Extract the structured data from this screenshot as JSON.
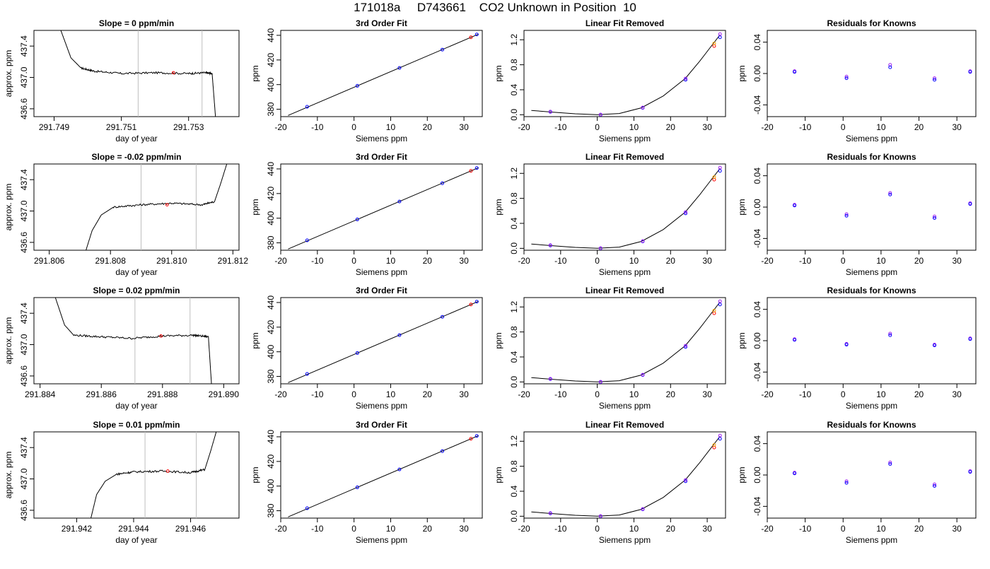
{
  "page": {
    "title": "171018a     D743661    CO2 Unknown in Position  10"
  },
  "colors": {
    "trace": "#000000",
    "marker_red": "#ff0000",
    "marker_blue": "#0000ff",
    "marker_purple": "#a020f0",
    "marker_orange": "#ffa500",
    "window_line": "#bebebe"
  },
  "fit_panel": {
    "title": "3rd Order Fit",
    "xlabel": "Siemens ppm",
    "ylabel": "ppm",
    "xlim": [
      -20,
      35
    ],
    "ylim": [
      374,
      444
    ],
    "xticks": [
      -20,
      -10,
      0,
      10,
      20,
      30
    ],
    "yticks": [
      380,
      400,
      420,
      440
    ],
    "line": [
      [
        -18,
        375
      ],
      [
        34,
        441
      ]
    ],
    "points": [
      {
        "x": -12.8,
        "y": 382.0,
        "color": "blue"
      },
      {
        "x": 0.9,
        "y": 399.0,
        "color": "blue"
      },
      {
        "x": 12.4,
        "y": 413.5,
        "color": "blue"
      },
      {
        "x": 24.1,
        "y": 428.4,
        "color": "blue"
      },
      {
        "x": 31.9,
        "y": 438.4,
        "color": "red"
      },
      {
        "x": 33.5,
        "y": 440.7,
        "color": "blue"
      }
    ]
  },
  "linear_panel": {
    "title": "Linear Fit Removed",
    "xlabel": "Siemens ppm",
    "ylabel": "ppm",
    "xlim": [
      -20,
      35
    ],
    "ylim": [
      -0.03,
      1.35
    ],
    "xticks": [
      -20,
      -10,
      0,
      10,
      20,
      30
    ],
    "yticks": [
      0.0,
      0.4,
      0.8,
      1.2
    ],
    "ytick_labels": [
      "0.0",
      "0.4",
      "0.8",
      "1.2"
    ],
    "curve": [
      [
        -18,
        0.07
      ],
      [
        -12,
        0.04
      ],
      [
        -6,
        0.015
      ],
      [
        0,
        0.0
      ],
      [
        6,
        0.02
      ],
      [
        12,
        0.11
      ],
      [
        18,
        0.3
      ],
      [
        24,
        0.58
      ],
      [
        28,
        0.86
      ],
      [
        31,
        1.09
      ],
      [
        33.5,
        1.28
      ]
    ],
    "points": [
      {
        "x": -12.8,
        "y": 0.045,
        "color": "blue"
      },
      {
        "x": -12.8,
        "y": 0.05,
        "color": "purple"
      },
      {
        "x": 0.9,
        "y": 0.0,
        "color": "blue"
      },
      {
        "x": 0.9,
        "y": 0.003,
        "color": "purple"
      },
      {
        "x": 12.4,
        "y": 0.11,
        "color": "blue"
      },
      {
        "x": 12.4,
        "y": 0.115,
        "color": "purple"
      },
      {
        "x": 24.1,
        "y": 0.56,
        "color": "blue"
      },
      {
        "x": 24.1,
        "y": 0.58,
        "color": "purple"
      },
      {
        "x": 31.9,
        "y": 1.1,
        "color": "red"
      },
      {
        "x": 31.9,
        "y": 1.14,
        "color": "orange"
      },
      {
        "x": 33.5,
        "y": 1.24,
        "color": "blue"
      },
      {
        "x": 33.5,
        "y": 1.29,
        "color": "purple"
      }
    ]
  },
  "residual_panel": {
    "title": "Residuals for Knowns",
    "xlabel": "Siemens ppm",
    "ylabel": "ppm",
    "xlim": [
      -20,
      35
    ],
    "ylim": [
      -0.055,
      0.055
    ],
    "xticks": [
      -20,
      -10,
      0,
      10,
      20,
      30
    ],
    "yticks": [
      -0.04,
      0.0,
      0.04
    ],
    "ytick_labels": [
      "-0.04",
      "0.00",
      "0.04"
    ]
  },
  "rows": [
    {
      "slope_title": "Slope =  0  ppm/min",
      "xlabel": "day of year",
      "ylabel": "approx. ppm",
      "xlim": [
        291.7484,
        291.7545
      ],
      "xticks": [
        291.749,
        291.751,
        291.753
      ],
      "xtick_labels": [
        "291.749",
        "291.751",
        "291.753"
      ],
      "ylim": [
        436.5,
        437.6
      ],
      "yticks": [
        436.6,
        437.0,
        437.4
      ],
      "ytick_labels": [
        "436.6",
        "437.0",
        "437.4"
      ],
      "window": [
        291.7515,
        291.7534
      ],
      "red_point": {
        "x": 291.75255,
        "y": 437.06
      },
      "trace": [
        [
          291.749,
          438.5
        ],
        [
          291.7492,
          437.6
        ],
        [
          291.7495,
          437.25
        ],
        [
          291.7498,
          437.12
        ],
        [
          291.7502,
          437.08
        ],
        [
          291.751,
          437.05
        ],
        [
          291.752,
          437.06
        ],
        [
          291.753,
          437.05
        ],
        [
          291.7535,
          437.06
        ],
        [
          291.7537,
          437.05
        ],
        [
          291.7538,
          436.5
        ]
      ],
      "residuals": [
        {
          "x": -12.8,
          "y": 0.003,
          "color": "purple"
        },
        {
          "x": -12.8,
          "y": 0.002,
          "color": "blue"
        },
        {
          "x": 0.9,
          "y": -0.004,
          "color": "purple"
        },
        {
          "x": 0.9,
          "y": -0.006,
          "color": "blue"
        },
        {
          "x": 12.4,
          "y": 0.011,
          "color": "purple"
        },
        {
          "x": 12.4,
          "y": 0.008,
          "color": "blue"
        },
        {
          "x": 24.1,
          "y": -0.006,
          "color": "purple"
        },
        {
          "x": 24.1,
          "y": -0.008,
          "color": "blue"
        },
        {
          "x": 33.5,
          "y": 0.003,
          "color": "purple"
        },
        {
          "x": 33.5,
          "y": 0.002,
          "color": "blue"
        }
      ]
    },
    {
      "slope_title": "Slope =  -0.02  ppm/min",
      "xlabel": "day of year",
      "ylabel": "approx. ppm",
      "xlim": [
        291.8055,
        291.8122
      ],
      "xticks": [
        291.806,
        291.808,
        291.81,
        291.812
      ],
      "xtick_labels": [
        "291.806",
        "291.808",
        "291.810",
        "291.812"
      ],
      "ylim": [
        436.5,
        437.6
      ],
      "yticks": [
        436.6,
        437.0,
        437.4
      ],
      "ytick_labels": [
        "436.6",
        "437.0",
        "437.4"
      ],
      "window": [
        291.809,
        291.8108
      ],
      "red_point": {
        "x": 291.80985,
        "y": 437.08
      },
      "trace": [
        [
          291.8072,
          436.5
        ],
        [
          291.8074,
          436.75
        ],
        [
          291.8077,
          436.95
        ],
        [
          291.8081,
          437.05
        ],
        [
          291.809,
          437.08
        ],
        [
          291.81,
          437.1
        ],
        [
          291.811,
          437.08
        ],
        [
          291.8114,
          437.12
        ],
        [
          291.8116,
          437.35
        ],
        [
          291.8118,
          437.6
        ]
      ],
      "residuals": [
        {
          "x": -12.8,
          "y": 0.003,
          "color": "purple"
        },
        {
          "x": -12.8,
          "y": 0.002,
          "color": "blue"
        },
        {
          "x": 0.9,
          "y": -0.009,
          "color": "purple"
        },
        {
          "x": 0.9,
          "y": -0.011,
          "color": "blue"
        },
        {
          "x": 12.4,
          "y": 0.018,
          "color": "purple"
        },
        {
          "x": 12.4,
          "y": 0.016,
          "color": "blue"
        },
        {
          "x": 24.1,
          "y": -0.012,
          "color": "purple"
        },
        {
          "x": 24.1,
          "y": -0.014,
          "color": "blue"
        },
        {
          "x": 33.5,
          "y": 0.005,
          "color": "purple"
        },
        {
          "x": 33.5,
          "y": 0.004,
          "color": "blue"
        }
      ]
    },
    {
      "slope_title": "Slope =  0.02  ppm/min",
      "xlabel": "day of year",
      "ylabel": "approx. ppm",
      "xlim": [
        291.8838,
        291.8905
      ],
      "xticks": [
        291.884,
        291.886,
        291.888,
        291.89
      ],
      "xtick_labels": [
        "291.884",
        "291.886",
        "291.888",
        "291.890"
      ],
      "ylim": [
        436.5,
        437.6
      ],
      "yticks": [
        436.6,
        437.0,
        437.4
      ],
      "ytick_labels": [
        "436.6",
        "437.0",
        "437.4"
      ],
      "window": [
        291.8871,
        291.8889
      ],
      "red_point": {
        "x": 291.88795,
        "y": 437.11
      },
      "trace": [
        [
          291.8843,
          438.2
        ],
        [
          291.8845,
          437.6
        ],
        [
          291.8848,
          437.25
        ],
        [
          291.8851,
          437.12
        ],
        [
          291.886,
          437.1
        ],
        [
          291.887,
          437.08
        ],
        [
          291.888,
          437.11
        ],
        [
          291.889,
          437.12
        ],
        [
          291.8895,
          437.1
        ],
        [
          291.8896,
          436.5
        ]
      ],
      "residuals": [
        {
          "x": -12.8,
          "y": 0.002,
          "color": "purple"
        },
        {
          "x": -12.8,
          "y": 0.001,
          "color": "blue"
        },
        {
          "x": 0.9,
          "y": -0.004,
          "color": "purple"
        },
        {
          "x": 0.9,
          "y": -0.005,
          "color": "blue"
        },
        {
          "x": 12.4,
          "y": 0.009,
          "color": "purple"
        },
        {
          "x": 12.4,
          "y": 0.007,
          "color": "blue"
        },
        {
          "x": 24.1,
          "y": -0.005,
          "color": "purple"
        },
        {
          "x": 24.1,
          "y": -0.006,
          "color": "blue"
        },
        {
          "x": 33.5,
          "y": 0.003,
          "color": "purple"
        },
        {
          "x": 33.5,
          "y": 0.002,
          "color": "blue"
        }
      ]
    },
    {
      "slope_title": "Slope =  0.01  ppm/min",
      "xlabel": "day of year",
      "ylabel": "approx. ppm",
      "xlim": [
        291.9405,
        291.9477
      ],
      "xticks": [
        291.942,
        291.944,
        291.946
      ],
      "xtick_labels": [
        "291.942",
        "291.944",
        "291.946"
      ],
      "ylim": [
        436.5,
        437.6
      ],
      "yticks": [
        436.6,
        437.0,
        437.4
      ],
      "ytick_labels": [
        "436.6",
        "437.0",
        "437.4"
      ],
      "window": [
        291.9444,
        291.9462
      ],
      "red_point": {
        "x": 291.9452,
        "y": 437.1
      },
      "trace": [
        [
          291.9425,
          436.5
        ],
        [
          291.9427,
          436.8
        ],
        [
          291.943,
          436.97
        ],
        [
          291.9434,
          437.06
        ],
        [
          291.944,
          437.09
        ],
        [
          291.945,
          437.1
        ],
        [
          291.946,
          437.08
        ],
        [
          291.9465,
          437.12
        ],
        [
          291.9467,
          437.35
        ],
        [
          291.9469,
          437.6
        ]
      ],
      "residuals": [
        {
          "x": -12.8,
          "y": 0.003,
          "color": "purple"
        },
        {
          "x": -12.8,
          "y": 0.002,
          "color": "blue"
        },
        {
          "x": 0.9,
          "y": -0.008,
          "color": "purple"
        },
        {
          "x": 0.9,
          "y": -0.01,
          "color": "blue"
        },
        {
          "x": 12.4,
          "y": 0.016,
          "color": "purple"
        },
        {
          "x": 12.4,
          "y": 0.014,
          "color": "blue"
        },
        {
          "x": 24.1,
          "y": -0.012,
          "color": "purple"
        },
        {
          "x": 24.1,
          "y": -0.014,
          "color": "blue"
        },
        {
          "x": 33.5,
          "y": 0.005,
          "color": "purple"
        },
        {
          "x": 33.5,
          "y": 0.004,
          "color": "blue"
        }
      ]
    }
  ],
  "chart_data": [
    {
      "type": "line",
      "title": "Slope =  0  ppm/min",
      "xlabel": "day of year",
      "ylabel": "approx. ppm",
      "xlim": [
        291.7484,
        291.7545
      ],
      "ylim": [
        436.5,
        437.6
      ]
    },
    {
      "type": "line",
      "title": "Slope =  -0.02  ppm/min",
      "xlabel": "day of year",
      "ylabel": "approx. ppm",
      "xlim": [
        291.8055,
        291.8122
      ],
      "ylim": [
        436.5,
        437.6
      ]
    },
    {
      "type": "line",
      "title": "Slope =  0.02  ppm/min",
      "xlabel": "day of year",
      "ylabel": "approx. ppm",
      "xlim": [
        291.8838,
        291.8905
      ],
      "ylim": [
        436.5,
        437.6
      ]
    },
    {
      "type": "line",
      "title": "Slope =  0.01  ppm/min",
      "xlabel": "day of year",
      "ylabel": "approx. ppm",
      "xlim": [
        291.9405,
        291.9477
      ],
      "ylim": [
        436.5,
        437.6
      ]
    },
    {
      "type": "scatter",
      "title": "3rd Order Fit",
      "xlabel": "Siemens ppm",
      "ylabel": "ppm",
      "x": [
        -12.8,
        0.9,
        12.4,
        24.1,
        31.9,
        33.5
      ],
      "y": [
        382.0,
        399.0,
        413.5,
        428.4,
        438.4,
        440.7
      ]
    },
    {
      "type": "scatter",
      "title": "Linear Fit Removed",
      "xlabel": "Siemens ppm",
      "ylabel": "ppm",
      "x": [
        -12.8,
        0.9,
        12.4,
        24.1,
        31.9,
        33.5
      ],
      "y": [
        0.05,
        0.0,
        0.11,
        0.57,
        1.12,
        1.27
      ]
    },
    {
      "type": "scatter",
      "title": "Residuals for Knowns",
      "xlabel": "Siemens ppm",
      "ylabel": "ppm",
      "x": [
        -12.8,
        0.9,
        12.4,
        24.1,
        33.5
      ],
      "y": [
        0.003,
        -0.006,
        0.016,
        -0.013,
        0.005
      ]
    }
  ]
}
